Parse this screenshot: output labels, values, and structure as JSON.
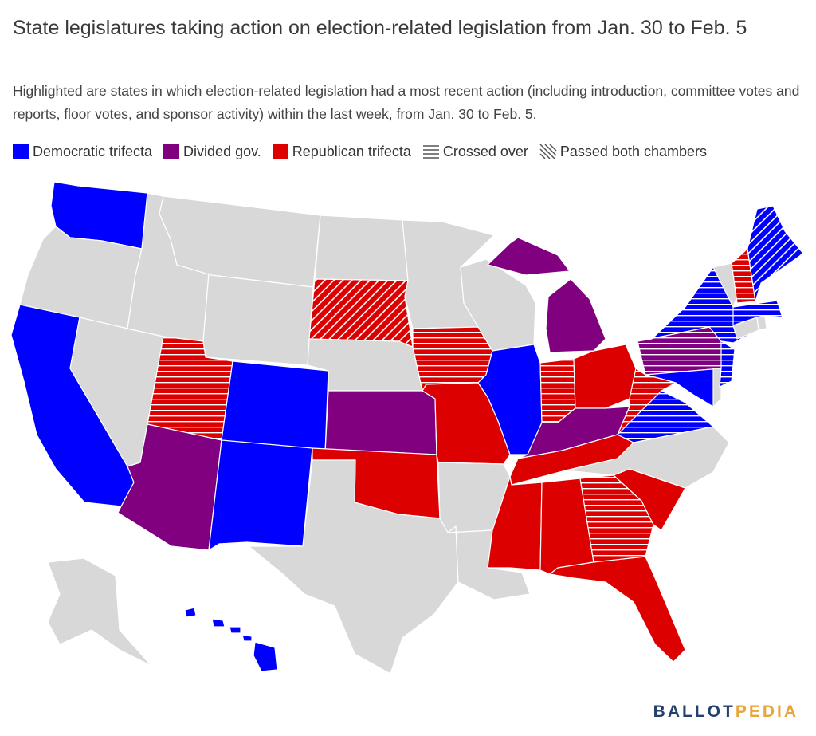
{
  "title": "State legislatures taking action on election-related legislation from Jan. 30 to Feb. 5",
  "subtitle": "Highlighted are states in which election-related legislation had a most recent action (including introduction, committee votes and reports, floor votes, and sponsor activity) within the last week, from Jan. 30 to  Feb. 5.",
  "legend": {
    "dem": "Democratic trifecta",
    "div": "Divided gov.",
    "rep": "Republican trifecta",
    "crossed": "Crossed over",
    "passed": "Passed both chambers"
  },
  "colors": {
    "dem": "#0000ff",
    "div": "#800080",
    "rep": "#dd0000",
    "none": "#d8d8d8",
    "border": "#ffffff"
  },
  "map": {
    "states": [
      {
        "name": "Washington",
        "status": "dem",
        "pattern": "none"
      },
      {
        "name": "California",
        "status": "dem",
        "pattern": "none"
      },
      {
        "name": "Colorado",
        "status": "dem",
        "pattern": "none"
      },
      {
        "name": "New Mexico",
        "status": "dem",
        "pattern": "none"
      },
      {
        "name": "Illinois",
        "status": "dem",
        "pattern": "none"
      },
      {
        "name": "Hawaii",
        "status": "dem",
        "pattern": "none"
      },
      {
        "name": "Maryland",
        "status": "dem",
        "pattern": "none"
      },
      {
        "name": "Virginia",
        "status": "dem",
        "pattern": "crossed"
      },
      {
        "name": "New York",
        "status": "dem",
        "pattern": "crossed"
      },
      {
        "name": "Massachusetts",
        "status": "dem",
        "pattern": "crossed"
      },
      {
        "name": "New Jersey",
        "status": "dem",
        "pattern": "crossed"
      },
      {
        "name": "Maine",
        "status": "dem",
        "pattern": "passed"
      },
      {
        "name": "Arizona",
        "status": "div",
        "pattern": "none"
      },
      {
        "name": "Kansas",
        "status": "div",
        "pattern": "none"
      },
      {
        "name": "Michigan",
        "status": "div",
        "pattern": "none"
      },
      {
        "name": "Kentucky",
        "status": "div",
        "pattern": "none"
      },
      {
        "name": "Pennsylvania",
        "status": "div",
        "pattern": "crossed"
      },
      {
        "name": "Utah",
        "status": "rep",
        "pattern": "crossed"
      },
      {
        "name": "South Dakota",
        "status": "rep",
        "pattern": "passed"
      },
      {
        "name": "Iowa",
        "status": "rep",
        "pattern": "crossed"
      },
      {
        "name": "Missouri",
        "status": "rep",
        "pattern": "none"
      },
      {
        "name": "Oklahoma",
        "status": "rep",
        "pattern": "none"
      },
      {
        "name": "Indiana",
        "status": "rep",
        "pattern": "crossed"
      },
      {
        "name": "Ohio",
        "status": "rep",
        "pattern": "none"
      },
      {
        "name": "West Virginia",
        "status": "rep",
        "pattern": "crossed"
      },
      {
        "name": "Tennessee",
        "status": "rep",
        "pattern": "none"
      },
      {
        "name": "Mississippi",
        "status": "rep",
        "pattern": "none"
      },
      {
        "name": "Alabama",
        "status": "rep",
        "pattern": "none"
      },
      {
        "name": "Georgia",
        "status": "rep",
        "pattern": "crossed"
      },
      {
        "name": "South Carolina",
        "status": "rep",
        "pattern": "none"
      },
      {
        "name": "Florida",
        "status": "rep",
        "pattern": "none"
      },
      {
        "name": "New Hampshire",
        "status": "rep",
        "pattern": "crossed"
      }
    ]
  },
  "logo": {
    "part1": "BALLOT",
    "part2": "PEDIA"
  }
}
